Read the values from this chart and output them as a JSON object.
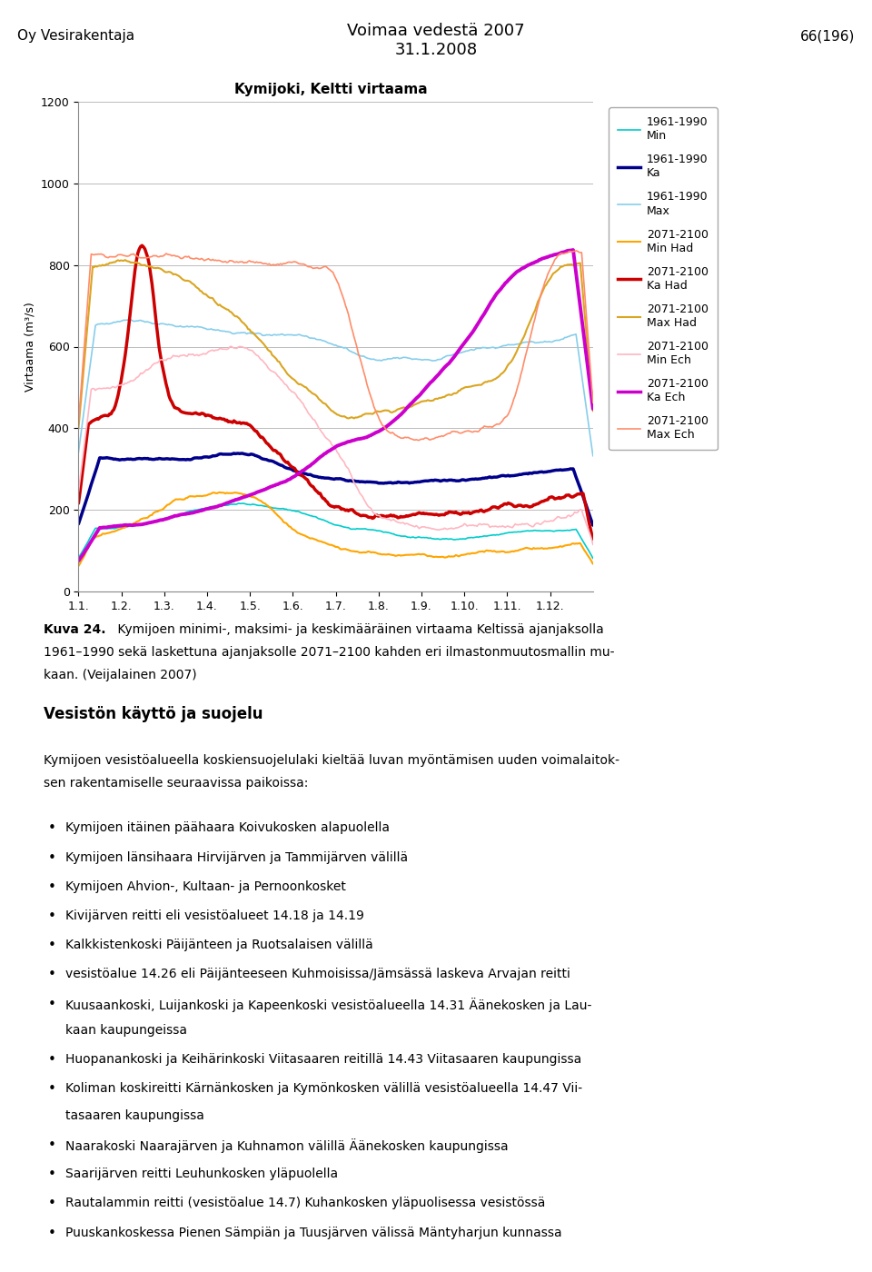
{
  "title_chart": "Kymijoki, Keltti virtaama",
  "header_left": "Oy Vesirakentaja",
  "header_center": "Voimaa vedestä 2007\n31.1.2008",
  "header_right": "66(196)",
  "ylabel": "Virtaama (m³/s)",
  "xlabel_ticks": [
    "1.1.",
    "1.2.",
    "1.3.",
    "1.4.",
    "1.5.",
    "1.6.",
    "1.7.",
    "1.8.",
    "1.9.",
    "1.10.",
    "1.11.",
    "1.12."
  ],
  "ylim": [
    0,
    1200
  ],
  "yticks": [
    0,
    200,
    400,
    600,
    800,
    1000,
    1200
  ],
  "legend_entries": [
    {
      "label": "1961-1990\nMin",
      "color": "#00CCCC",
      "lw": 1.2
    },
    {
      "label": "1961-1990\nKa",
      "color": "#00008B",
      "lw": 2.5
    },
    {
      "label": "1961-1990\nMax",
      "color": "#87CEEB",
      "lw": 1.2
    },
    {
      "label": "2071-2100\nMin Had",
      "color": "#FFA500",
      "lw": 1.5
    },
    {
      "label": "2071-2100\nKa Had",
      "color": "#CC0000",
      "lw": 2.5
    },
    {
      "label": "2071-2100\nMax Had",
      "color": "#DAA520",
      "lw": 1.5
    },
    {
      "label": "2071-2100\nMin Ech",
      "color": "#FFB6C1",
      "lw": 1.2
    },
    {
      "label": "2071-2100\nKa Ech",
      "color": "#CC00CC",
      "lw": 2.5
    },
    {
      "label": "2071-2100\nMax Ech",
      "color": "#FF8C69",
      "lw": 1.2
    }
  ],
  "background_color": "#FFFFFF",
  "caption_bold": "Kuva 24.",
  "caption_normal": " Kymijoen minimi-, maksimi- ja keskimääräinen virtaama Keltissä ajanjaksolla\n1961–1990 sekä laskettuna ajanjaksolle 2071–2100 kahden eri ilmastonmuutosmallin mu-\nkaan. (Veijalainen 2007)",
  "section_title": "Vesistön käyttö ja suojelu",
  "intro_text": "Kymijoen vesistöalueella koskiensuojelulaki kieltää luvan myöntämisen uuden voimalaitok-\nsen rakentamiselle seuraavissa paikoissa:",
  "bullets": [
    "Kymijoen itäinen päähaara Koivukosken alapuolella",
    "Kymijoen länsihaara Hirvijärven ja Tammijärven välillä",
    "Kymijoen Ahvion-, Kultaan- ja Pernoonkosket",
    "Kivijärven reitti eli vesistöalueet 14.18 ja 14.19",
    "Kalkkistenkoski Päijänteen ja Ruotsalaisen välillä",
    "vesistöalue 14.26 eli Päijänteeseen Kuhmoisissa/Jämsässä laskeva Arvajan reitti",
    "Kuusaankoski, Luijankoski ja Kapeenkoski vesistöalueella 14.31 Äänekosken ja Lau-\nkaan kaupungeissa",
    "Huopanankoski ja Keihärinkoski Viitasaaren reitillä 14.43 Viitasaaren kaupungissa",
    "Koliman koskireitti Kärnänkosken ja Kymönkosken välillä vesistöalueella 14.47 Vii-\ntasaaren kaupungissa",
    "Naarakoski Naarajärven ja Kuhnamon välillä Äänekosken kaupungissa",
    "Saarijärven reitti Leuhunkosken yläpuolella",
    "Rautalammin reitti (vesistöalue 14.7) Kuhankosken yläpuolisessa vesistössä",
    "Puuskankoskessa Pienen Sämpiän ja Tuusjärven välissä Mäntyharjun kunnassa"
  ]
}
